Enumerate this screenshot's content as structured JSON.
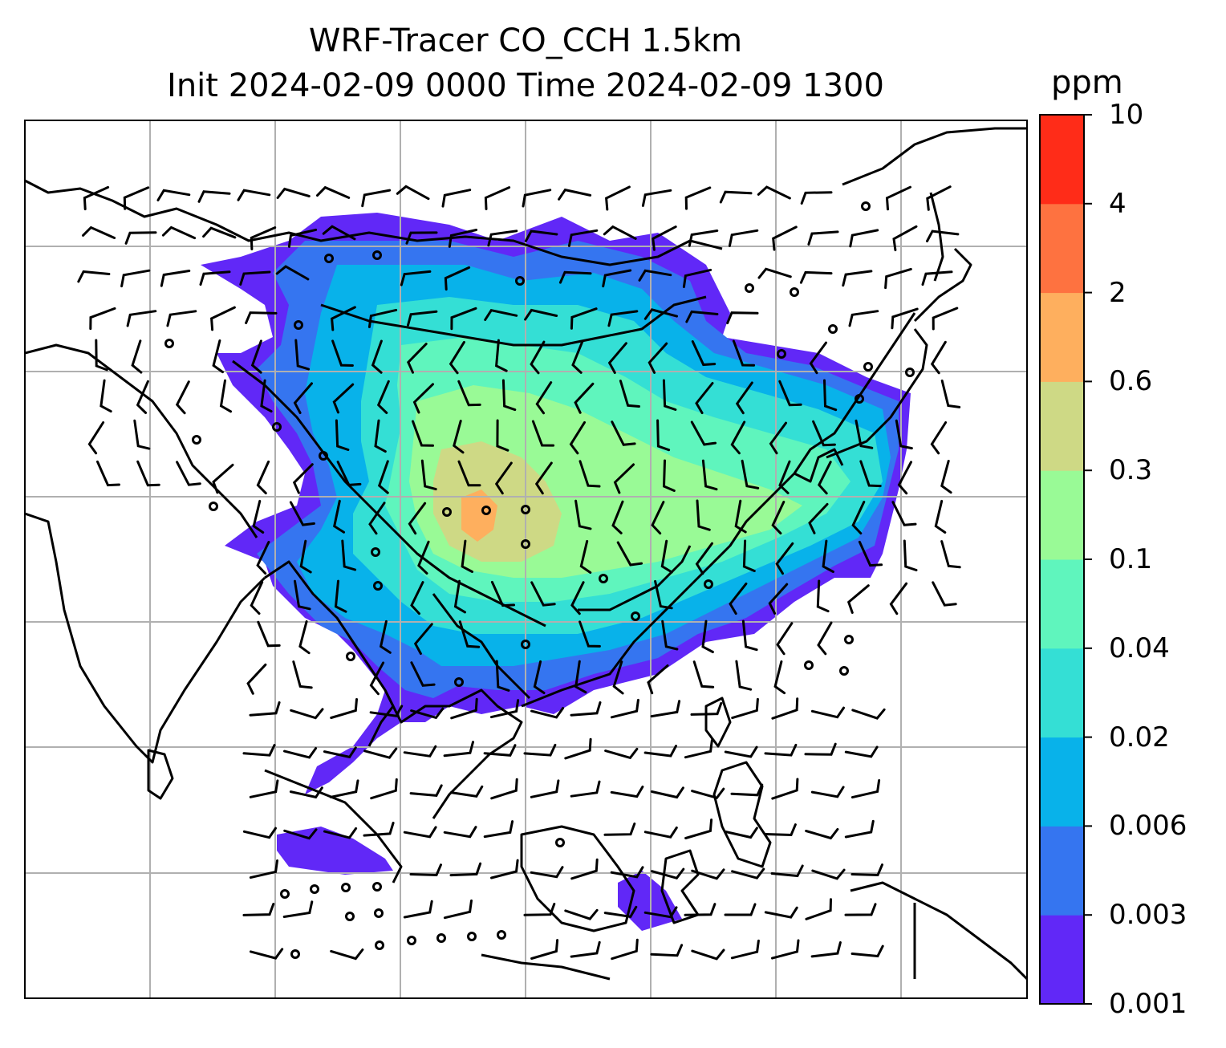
{
  "title": {
    "line1": "WRF-Tracer CO_CCH 1.5km",
    "line2": "Init 2024-02-09 0000 Time 2024-02-09 1300"
  },
  "colorbar": {
    "unit": "ppm",
    "ticks": [
      "0.001",
      "0.003",
      "0.006",
      "0.02",
      "0.04",
      "0.1",
      "0.3",
      "0.6",
      "2",
      "4",
      "10"
    ],
    "colors": [
      "#6128f7",
      "#3575f0",
      "#08b2ea",
      "#34dfd5",
      "#5ff5bd",
      "#99fa96",
      "#ced985",
      "#feaf5e",
      "#fe7240",
      "#ff2c18"
    ]
  },
  "map": {
    "gridlines": true,
    "coastline_color": "#000000",
    "gridline_color": "#b0b0b0",
    "features": [
      "concentration-field",
      "wind-barbs",
      "coastlines",
      "country-borders"
    ]
  }
}
